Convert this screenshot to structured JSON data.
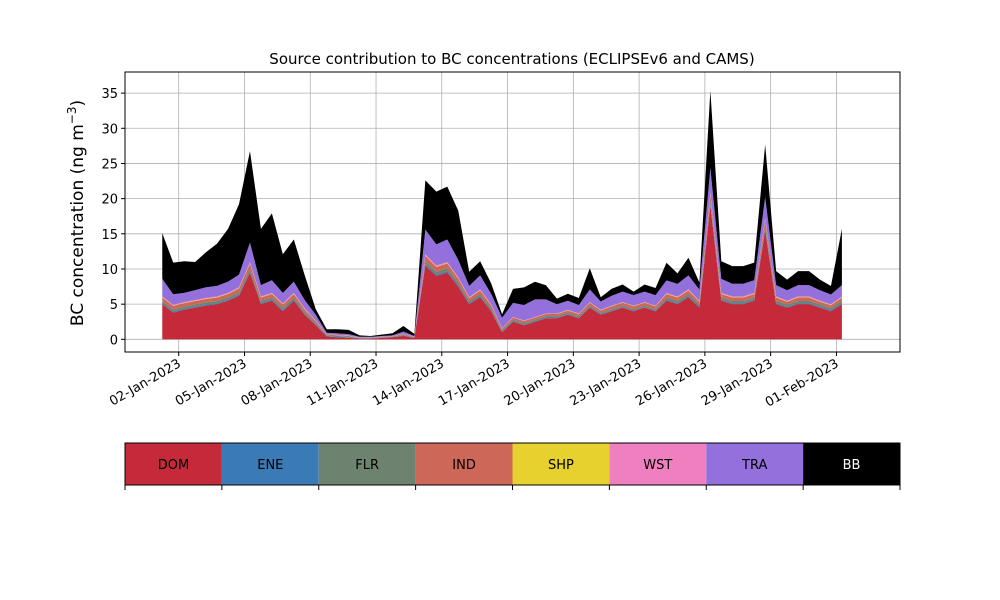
{
  "chart_data": {
    "type": "area",
    "stacked": true,
    "title": "Source contribution to BC concentrations (ECLIPSEv6 and CAMS)",
    "ylabel_main": "BC concentration (ng m",
    "ylabel_sup": "−3",
    "ylabel_close": ")",
    "xlabel": "",
    "ylim": [
      -1.8,
      38
    ],
    "xlim": [
      -3.4,
      67.3
    ],
    "yticks": [
      0,
      5,
      10,
      15,
      20,
      25,
      30,
      35
    ],
    "xticks": [
      {
        "x": 1.5,
        "label": "02-Jan-2023"
      },
      {
        "x": 7.5,
        "label": "05-Jan-2023"
      },
      {
        "x": 13.5,
        "label": "08-Jan-2023"
      },
      {
        "x": 19.5,
        "label": "11-Jan-2023"
      },
      {
        "x": 25.5,
        "label": "14-Jan-2023"
      },
      {
        "x": 31.5,
        "label": "17-Jan-2023"
      },
      {
        "x": 37.5,
        "label": "20-Jan-2023"
      },
      {
        "x": 43.5,
        "label": "23-Jan-2023"
      },
      {
        "x": 49.5,
        "label": "26-Jan-2023"
      },
      {
        "x": 55.5,
        "label": "29-Jan-2023"
      },
      {
        "x": 61.5,
        "label": "01-Feb-2023"
      }
    ],
    "x_unit": "half-day steps from 01-Jan-2023 12:00",
    "grid": true,
    "legend": {
      "placement": "bottom",
      "items": [
        {
          "label": "DOM",
          "color": "#c52a3a",
          "text_color": "#000000"
        },
        {
          "label": "ENE",
          "color": "#3a7ab5",
          "text_color": "#000000"
        },
        {
          "label": "FLR",
          "color": "#6e8270",
          "text_color": "#000000"
        },
        {
          "label": "IND",
          "color": "#cd6858",
          "text_color": "#000000"
        },
        {
          "label": "SHP",
          "color": "#e6d12e",
          "text_color": "#000000"
        },
        {
          "label": "WST",
          "color": "#f07fbf",
          "text_color": "#000000"
        },
        {
          "label": "TRA",
          "color": "#9370db",
          "text_color": "#000000"
        },
        {
          "label": "BB",
          "color": "#000000",
          "text_color": "#ffffff"
        }
      ]
    },
    "x": [
      0,
      1,
      2,
      3,
      4,
      5,
      6,
      7,
      8,
      9,
      10,
      11,
      12,
      13,
      14,
      15,
      16,
      17,
      18,
      19,
      20,
      21,
      22,
      23,
      24,
      25,
      26,
      27,
      28,
      29,
      30,
      31,
      32,
      33,
      34,
      35,
      36,
      37,
      38,
      39,
      40,
      41,
      42,
      43,
      44,
      45,
      46,
      47,
      48,
      49,
      50,
      51,
      52,
      53,
      54,
      55,
      56,
      57,
      58,
      59,
      60,
      61,
      62
    ],
    "series": [
      {
        "name": "DOM",
        "color": "#c52a3a",
        "values": [
          5.0,
          3.8,
          4.2,
          4.5,
          4.8,
          5.0,
          5.5,
          6.2,
          9.5,
          5.0,
          5.5,
          4.0,
          5.5,
          3.5,
          2.0,
          0.4,
          0.3,
          0.2,
          0.1,
          0.1,
          0.2,
          0.3,
          0.5,
          0.2,
          10.5,
          9.0,
          9.5,
          7.5,
          5.0,
          6.0,
          4.0,
          1.0,
          2.5,
          2.0,
          2.5,
          3.0,
          3.0,
          3.5,
          3.0,
          4.5,
          3.5,
          4.0,
          4.5,
          4.0,
          4.5,
          4.0,
          5.5,
          5.0,
          6.0,
          4.5,
          19.0,
          5.5,
          5.0,
          5.0,
          5.5,
          15.5,
          5.0,
          4.5,
          5.0,
          5.0,
          4.5,
          4.0,
          5.0
        ]
      },
      {
        "name": "ENE",
        "color": "#3a7ab5",
        "values": [
          0.15,
          0.15,
          0.15,
          0.15,
          0.15,
          0.15,
          0.15,
          0.15,
          0.15,
          0.15,
          0.15,
          0.15,
          0.15,
          0.1,
          0.1,
          0.1,
          0.1,
          0.1,
          0.05,
          0.05,
          0.05,
          0.05,
          0.05,
          0.05,
          0.2,
          0.2,
          0.2,
          0.2,
          0.15,
          0.15,
          0.15,
          0.1,
          0.1,
          0.1,
          0.1,
          0.1,
          0.1,
          0.1,
          0.1,
          0.1,
          0.1,
          0.1,
          0.1,
          0.1,
          0.1,
          0.1,
          0.15,
          0.15,
          0.15,
          0.15,
          0.2,
          0.15,
          0.15,
          0.15,
          0.15,
          0.2,
          0.15,
          0.15,
          0.15,
          0.15,
          0.15,
          0.15,
          0.15
        ]
      },
      {
        "name": "FLR",
        "color": "#6e8270",
        "values": [
          0.3,
          0.3,
          0.3,
          0.3,
          0.3,
          0.3,
          0.3,
          0.3,
          0.4,
          0.3,
          0.3,
          0.3,
          0.3,
          0.25,
          0.2,
          0.1,
          0.1,
          0.1,
          0.05,
          0.05,
          0.05,
          0.05,
          0.1,
          0.05,
          0.4,
          0.4,
          0.4,
          0.35,
          0.3,
          0.3,
          0.3,
          0.2,
          0.2,
          0.2,
          0.2,
          0.2,
          0.2,
          0.2,
          0.2,
          0.2,
          0.2,
          0.2,
          0.2,
          0.2,
          0.2,
          0.2,
          0.3,
          0.3,
          0.3,
          0.3,
          0.5,
          0.3,
          0.3,
          0.3,
          0.3,
          0.5,
          0.3,
          0.3,
          0.3,
          0.3,
          0.3,
          0.3,
          0.3
        ]
      },
      {
        "name": "IND",
        "color": "#cd6858",
        "values": [
          0.5,
          0.5,
          0.5,
          0.5,
          0.5,
          0.5,
          0.5,
          0.6,
          0.7,
          0.5,
          0.5,
          0.5,
          0.5,
          0.4,
          0.3,
          0.1,
          0.1,
          0.1,
          0.05,
          0.05,
          0.05,
          0.05,
          0.1,
          0.05,
          0.8,
          0.7,
          0.7,
          0.6,
          0.4,
          0.5,
          0.4,
          0.2,
          0.3,
          0.3,
          0.3,
          0.3,
          0.3,
          0.3,
          0.3,
          0.4,
          0.3,
          0.4,
          0.4,
          0.4,
          0.4,
          0.4,
          0.5,
          0.5,
          0.5,
          0.4,
          0.9,
          0.5,
          0.5,
          0.5,
          0.5,
          0.8,
          0.5,
          0.4,
          0.5,
          0.5,
          0.4,
          0.4,
          0.5
        ]
      },
      {
        "name": "SHP",
        "color": "#e6d12e",
        "values": [
          0.05,
          0.05,
          0.05,
          0.05,
          0.05,
          0.05,
          0.05,
          0.05,
          0.05,
          0.05,
          0.05,
          0.05,
          0.05,
          0.05,
          0.05,
          0.02,
          0.02,
          0.02,
          0.01,
          0.01,
          0.01,
          0.01,
          0.02,
          0.01,
          0.05,
          0.05,
          0.05,
          0.05,
          0.05,
          0.05,
          0.05,
          0.03,
          0.03,
          0.03,
          0.03,
          0.03,
          0.03,
          0.03,
          0.03,
          0.03,
          0.03,
          0.03,
          0.03,
          0.03,
          0.03,
          0.03,
          0.05,
          0.05,
          0.05,
          0.05,
          0.05,
          0.05,
          0.05,
          0.05,
          0.05,
          0.05,
          0.05,
          0.05,
          0.05,
          0.05,
          0.05,
          0.05,
          0.05
        ]
      },
      {
        "name": "WST",
        "color": "#f07fbf",
        "values": [
          0.1,
          0.1,
          0.1,
          0.1,
          0.1,
          0.1,
          0.1,
          0.1,
          0.15,
          0.1,
          0.1,
          0.1,
          0.1,
          0.08,
          0.05,
          0.02,
          0.02,
          0.02,
          0.01,
          0.01,
          0.01,
          0.01,
          0.02,
          0.01,
          0.15,
          0.15,
          0.15,
          0.1,
          0.1,
          0.1,
          0.08,
          0.04,
          0.05,
          0.05,
          0.05,
          0.05,
          0.05,
          0.05,
          0.05,
          0.06,
          0.05,
          0.06,
          0.06,
          0.06,
          0.06,
          0.06,
          0.08,
          0.08,
          0.1,
          0.08,
          0.2,
          0.1,
          0.1,
          0.1,
          0.1,
          0.15,
          0.1,
          0.08,
          0.1,
          0.1,
          0.08,
          0.08,
          0.1
        ]
      },
      {
        "name": "TRA",
        "color": "#9370db",
        "values": [
          2.5,
          1.5,
          1.3,
          1.4,
          1.5,
          1.5,
          1.6,
          1.8,
          2.8,
          1.6,
          1.8,
          1.5,
          1.6,
          1.2,
          0.8,
          0.2,
          0.2,
          0.2,
          0.1,
          0.1,
          0.1,
          0.1,
          0.3,
          0.1,
          3.5,
          3.0,
          3.2,
          2.5,
          1.6,
          2.0,
          1.5,
          1.5,
          2.0,
          2.2,
          2.5,
          2.0,
          1.3,
          1.3,
          1.2,
          1.8,
          1.2,
          1.4,
          1.5,
          1.5,
          1.5,
          1.5,
          1.8,
          1.8,
          2.0,
          1.6,
          3.5,
          2.0,
          1.8,
          1.8,
          1.8,
          3.0,
          1.6,
          1.5,
          1.6,
          1.6,
          1.5,
          1.4,
          1.6
        ]
      },
      {
        "name": "BB",
        "color": "#000000",
        "values": [
          6.5,
          4.5,
          4.5,
          4.0,
          5.0,
          6.0,
          7.5,
          10.0,
          13.0,
          8.0,
          9.5,
          5.5,
          6.0,
          3.5,
          0.8,
          0.5,
          0.6,
          0.6,
          0.2,
          0.1,
          0.2,
          0.3,
          0.8,
          0.3,
          7.0,
          7.5,
          7.5,
          7.0,
          2.0,
          2.0,
          1.5,
          0.5,
          2.0,
          2.5,
          2.5,
          2.0,
          0.8,
          1.0,
          1.0,
          3.0,
          0.6,
          1.0,
          1.0,
          0.5,
          1.0,
          1.0,
          2.5,
          1.5,
          2.5,
          1.0,
          11.0,
          2.5,
          2.5,
          2.5,
          2.5,
          7.5,
          2.0,
          1.5,
          2.0,
          2.0,
          1.5,
          1.2,
          8.0
        ]
      }
    ]
  }
}
